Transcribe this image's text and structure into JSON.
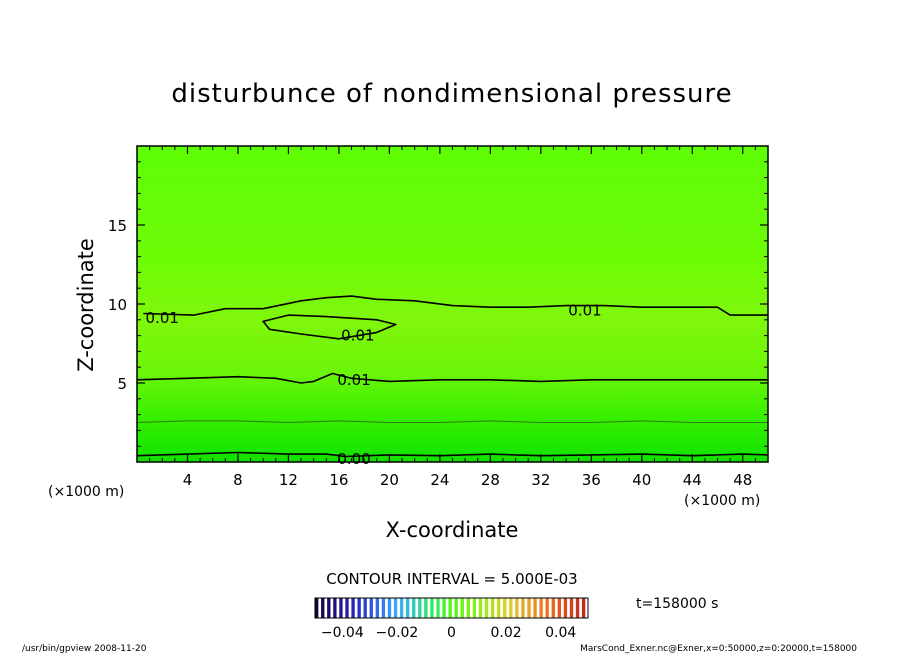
{
  "chart_data": {
    "type": "contour",
    "title": "disturbunce of nondimensional pressure",
    "xlabel": "X-coordinate",
    "ylabel": "Z-coordinate",
    "x_unit_left": "(×1000 m)",
    "x_unit_right": "(×1000 m)",
    "xlim": [
      0,
      50
    ],
    "ylim": [
      0,
      20
    ],
    "x_ticks": [
      "4",
      "8",
      "12",
      "16",
      "20",
      "24",
      "28",
      "32",
      "36",
      "40",
      "44",
      "48"
    ],
    "y_ticks": [
      "5",
      "10",
      "15"
    ],
    "contour_interval_label": "CONTOUR INTERVAL = 5.000E-03",
    "time_label": "t=158000 s",
    "colorbar_ticks": [
      "−0.04",
      "−0.02",
      "0",
      "0.02",
      "0.04"
    ],
    "colorbar_range": [
      -0.05,
      0.05
    ],
    "contour_labels": [
      {
        "text": "0.01",
        "x": 2.0,
        "z": 9.1
      },
      {
        "text": "0.01",
        "x": 17.5,
        "z": 8.0
      },
      {
        "text": "0.01",
        "x": 17.2,
        "z": 5.2
      },
      {
        "text": "0.01",
        "x": 35.5,
        "z": 9.6
      },
      {
        "text": "0.00",
        "x": 17.2,
        "z": 0.2
      }
    ],
    "contour_lines": [
      {
        "level": 0.01,
        "points": [
          [
            0.5,
            9.4
          ],
          [
            4.5,
            9.3
          ],
          [
            7,
            9.7
          ],
          [
            10,
            9.7
          ],
          [
            13,
            10.2
          ],
          [
            15,
            10.4
          ],
          [
            17,
            10.5
          ],
          [
            19,
            10.3
          ],
          [
            22,
            10.2
          ],
          [
            25,
            9.9
          ],
          [
            28,
            9.8
          ],
          [
            31,
            9.8
          ],
          [
            34,
            9.9
          ],
          [
            37,
            9.9
          ],
          [
            40,
            9.8
          ],
          [
            43,
            9.8
          ],
          [
            46,
            9.8
          ],
          [
            47,
            9.3
          ],
          [
            50,
            9.3
          ]
        ]
      },
      {
        "level": 0.01,
        "closed": true,
        "points": [
          [
            10,
            8.9
          ],
          [
            12,
            9.3
          ],
          [
            15,
            9.2
          ],
          [
            19,
            9.0
          ],
          [
            20.5,
            8.7
          ],
          [
            19,
            8.2
          ],
          [
            16,
            7.8
          ],
          [
            13,
            8.1
          ],
          [
            10.5,
            8.4
          ]
        ]
      },
      {
        "level": 0.01,
        "points": [
          [
            0,
            5.2
          ],
          [
            4,
            5.3
          ],
          [
            8,
            5.4
          ],
          [
            11,
            5.3
          ],
          [
            13,
            5.0
          ],
          [
            14,
            5.1
          ],
          [
            15.5,
            5.6
          ],
          [
            17,
            5.3
          ],
          [
            20,
            5.1
          ],
          [
            24,
            5.2
          ],
          [
            28,
            5.2
          ],
          [
            32,
            5.1
          ],
          [
            36,
            5.2
          ],
          [
            40,
            5.2
          ],
          [
            44,
            5.2
          ],
          [
            48,
            5.2
          ],
          [
            50,
            5.2
          ]
        ]
      },
      {
        "level": 0.005,
        "points": [
          [
            0,
            2.5
          ],
          [
            4,
            2.6
          ],
          [
            8,
            2.6
          ],
          [
            12,
            2.5
          ],
          [
            16,
            2.6
          ],
          [
            20,
            2.5
          ],
          [
            24,
            2.5
          ],
          [
            28,
            2.6
          ],
          [
            32,
            2.5
          ],
          [
            36,
            2.5
          ],
          [
            40,
            2.6
          ],
          [
            44,
            2.5
          ],
          [
            50,
            2.5
          ]
        ]
      },
      {
        "level": 0.0,
        "points": [
          [
            0,
            0.4
          ],
          [
            4,
            0.5
          ],
          [
            8,
            0.6
          ],
          [
            12,
            0.5
          ],
          [
            15,
            0.5
          ],
          [
            16.5,
            0.35
          ],
          [
            20,
            0.45
          ],
          [
            24,
            0.4
          ],
          [
            28,
            0.5
          ],
          [
            32,
            0.4
          ],
          [
            36,
            0.45
          ],
          [
            40,
            0.5
          ],
          [
            44,
            0.4
          ],
          [
            48,
            0.5
          ],
          [
            50,
            0.45
          ]
        ]
      }
    ]
  },
  "footer": {
    "program_date": "/usr/bin/gpview   2008-11-20",
    "source": "MarsCond_Exner.nc@Exner,x=0:50000,z=0:20000,t=158000"
  }
}
